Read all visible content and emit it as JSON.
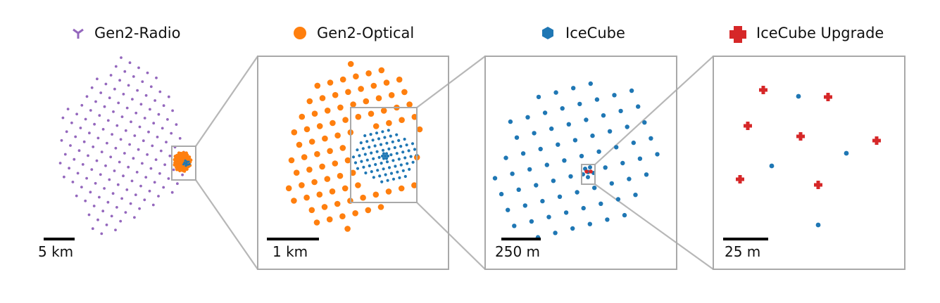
{
  "legend": {
    "radio_label": "Gen2-Radio",
    "optical_label": "Gen2-Optical",
    "icecube_label": "IceCube",
    "upgrade_label": "IceCube Upgrade"
  },
  "scales": {
    "panel1": "5 km",
    "panel2": "1 km",
    "panel3": "250 m",
    "panel4": "25 m"
  },
  "colors": {
    "radio": "#9467bd",
    "optical": "#ff7f0e",
    "icecube": "#1f77b4",
    "upgrade": "#d62728",
    "frame": "#a9a9a9"
  },
  "icons": {
    "radio": "tri-star-icon",
    "optical": "circle-icon",
    "icecube": "hexagon-icon",
    "upgrade": "plus-icon"
  }
}
